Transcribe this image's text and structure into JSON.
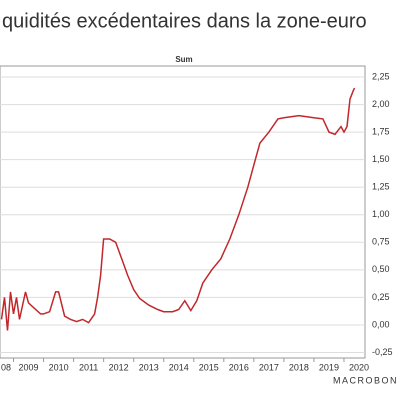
{
  "chart_data": {
    "type": "line",
    "title": "quidités excédentaires dans la zone-euro",
    "subtitle": "Sum",
    "source": "MACROBON",
    "x": [
      2008.6,
      2008.7,
      2008.8,
      2008.9,
      2009.0,
      2009.1,
      2009.2,
      2009.4,
      2009.5,
      2009.7,
      2009.9,
      2010.0,
      2010.2,
      2010.4,
      2010.5,
      2010.7,
      2010.9,
      2011.1,
      2011.3,
      2011.5,
      2011.7,
      2011.8,
      2011.9,
      2012.0,
      2012.2,
      2012.4,
      2012.6,
      2012.8,
      2013.0,
      2013.2,
      2013.5,
      2013.8,
      2014.0,
      2014.3,
      2014.5,
      2014.7,
      2014.9,
      2015.1,
      2015.3,
      2015.6,
      2015.9,
      2016.2,
      2016.5,
      2016.8,
      2017.0,
      2017.2,
      2017.5,
      2017.8,
      2018.0,
      2018.5,
      2019.0,
      2019.3,
      2019.5,
      2019.7,
      2019.9,
      2020.0,
      2020.1,
      2020.2,
      2020.3,
      2020.35
    ],
    "series": [
      {
        "color": "#c0282d",
        "values": [
          0.05,
          0.25,
          -0.05,
          0.3,
          0.1,
          0.25,
          0.05,
          0.3,
          0.2,
          0.15,
          0.1,
          0.1,
          0.12,
          0.3,
          0.3,
          0.08,
          0.05,
          0.03,
          0.05,
          0.02,
          0.1,
          0.25,
          0.45,
          0.78,
          0.78,
          0.75,
          0.6,
          0.45,
          0.32,
          0.24,
          0.18,
          0.14,
          0.12,
          0.12,
          0.14,
          0.22,
          0.13,
          0.22,
          0.38,
          0.5,
          0.6,
          0.78,
          1.0,
          1.25,
          1.45,
          1.65,
          1.75,
          1.87,
          1.88,
          1.9,
          1.88,
          1.87,
          1.75,
          1.73,
          1.8,
          1.75,
          1.8,
          2.05,
          2.12,
          2.15
        ]
      }
    ],
    "xlim": [
      2008.55,
      2020.7
    ],
    "xticks": [
      {
        "value": 2008,
        "label": "08"
      },
      2009,
      2010,
      2011,
      2012,
      2013,
      2014,
      2015,
      2016,
      2017,
      2018,
      2019,
      2020
    ],
    "ylim": [
      -0.3,
      2.35
    ],
    "yticks": [
      {
        "value": -0.25,
        "label": "-0,25"
      },
      {
        "value": 0,
        "label": "0,00"
      },
      {
        "value": 0.25,
        "label": "0,25"
      },
      {
        "value": 0.5,
        "label": "0,50"
      },
      {
        "value": 0.75,
        "label": "0,75"
      },
      {
        "value": 1,
        "label": "1,00"
      },
      {
        "value": 1.25,
        "label": "1,25"
      },
      {
        "value": 1.5,
        "label": "1,50"
      },
      {
        "value": 1.75,
        "label": "1,75"
      },
      {
        "value": 2,
        "label": "2,00"
      },
      {
        "value": 2.25,
        "label": "2,25"
      }
    ],
    "grid": true
  }
}
